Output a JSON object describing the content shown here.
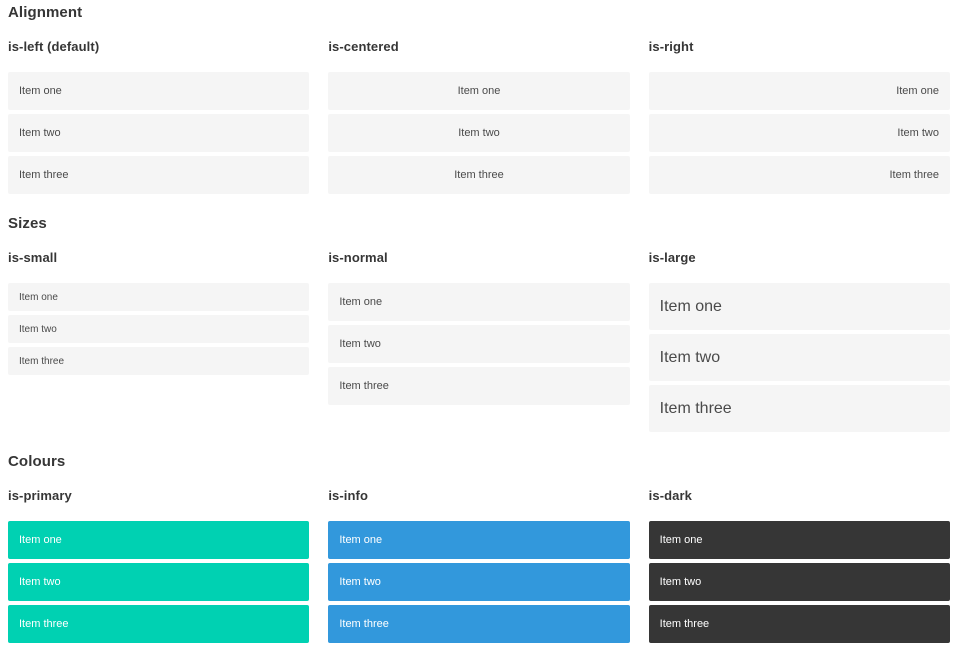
{
  "theme": {
    "primary": "#00d1b2",
    "info": "#3298dc",
    "dark": "#363636",
    "item_bg": "#f5f5f5",
    "item_text": "#4a4a4a",
    "heading_color": "#363636",
    "colored_item_text": "#ffffff"
  },
  "sections": [
    {
      "title": "Alignment",
      "variants": [
        {
          "label": "is-left (default)",
          "items": [
            "Item one",
            "Item two",
            "Item three"
          ]
        },
        {
          "label": "is-centered",
          "items": [
            "Item one",
            "Item two",
            "Item three"
          ]
        },
        {
          "label": "is-right",
          "items": [
            "Item one",
            "Item two",
            "Item three"
          ]
        }
      ]
    },
    {
      "title": "Sizes",
      "variants": [
        {
          "label": "is-small",
          "items": [
            "Item one",
            "Item two",
            "Item three"
          ]
        },
        {
          "label": "is-normal",
          "items": [
            "Item one",
            "Item two",
            "Item three"
          ]
        },
        {
          "label": "is-large",
          "items": [
            "Item one",
            "Item two",
            "Item three"
          ]
        }
      ]
    },
    {
      "title": "Colours",
      "variants": [
        {
          "label": "is-primary",
          "items": [
            "Item one",
            "Item two",
            "Item three"
          ]
        },
        {
          "label": "is-info",
          "items": [
            "Item one",
            "Item two",
            "Item three"
          ]
        },
        {
          "label": "is-dark",
          "items": [
            "Item one",
            "Item two",
            "Item three"
          ]
        }
      ]
    }
  ]
}
